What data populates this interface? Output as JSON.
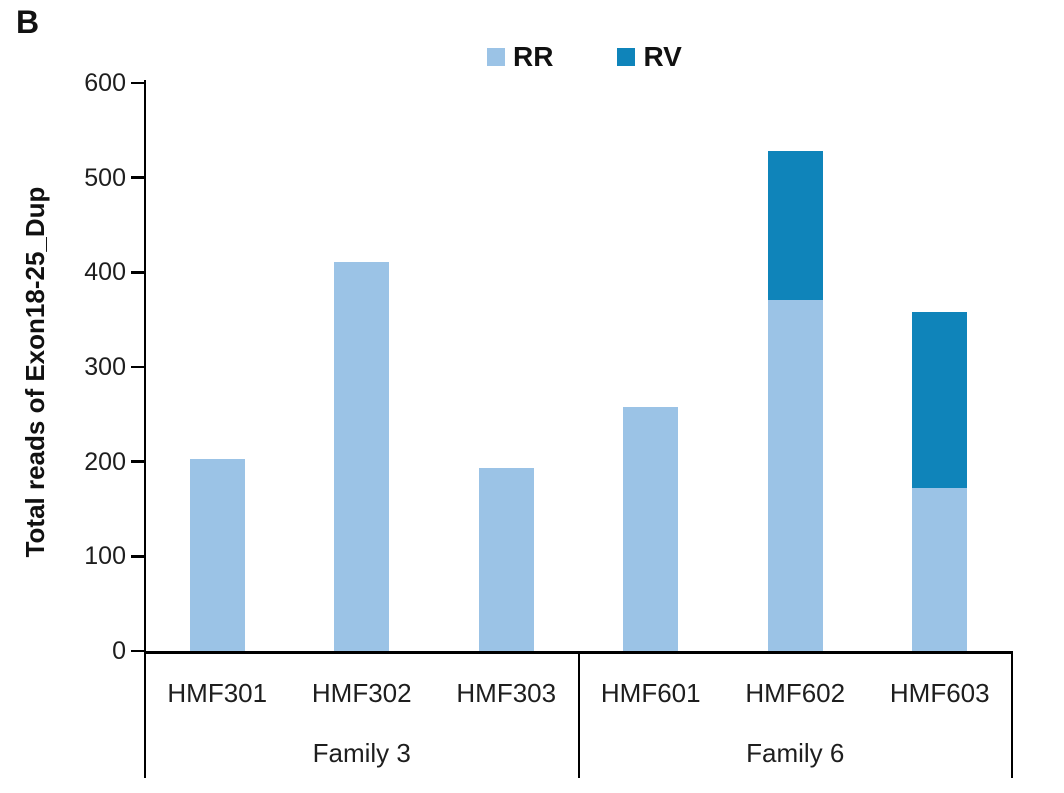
{
  "panel_label": "B",
  "chart_data": {
    "type": "bar",
    "stacked": true,
    "title": "",
    "ylabel": "Total reads of Exon18-25_Dup",
    "xlabel": "",
    "ylim": [
      0,
      600
    ],
    "y_ticks": [
      0,
      100,
      200,
      300,
      400,
      500,
      600
    ],
    "grid": false,
    "legend_position": "top-center",
    "categories": [
      "HMF301",
      "HMF302",
      "HMF303",
      "HMF601",
      "HMF602",
      "HMF603"
    ],
    "groups": [
      {
        "label": "Family 3",
        "span": [
          0,
          2
        ]
      },
      {
        "label": "Family 6",
        "span": [
          3,
          5
        ]
      }
    ],
    "series": [
      {
        "name": "RR",
        "color": "#9BC3E6",
        "values": [
          205,
          413,
          195,
          260,
          372,
          173
        ]
      },
      {
        "name": "RV",
        "color": "#0F84BA",
        "values": [
          0,
          0,
          0,
          0,
          158,
          187
        ]
      }
    ]
  },
  "colors": {
    "axis": "#000000",
    "text": "#1e1e1e"
  }
}
